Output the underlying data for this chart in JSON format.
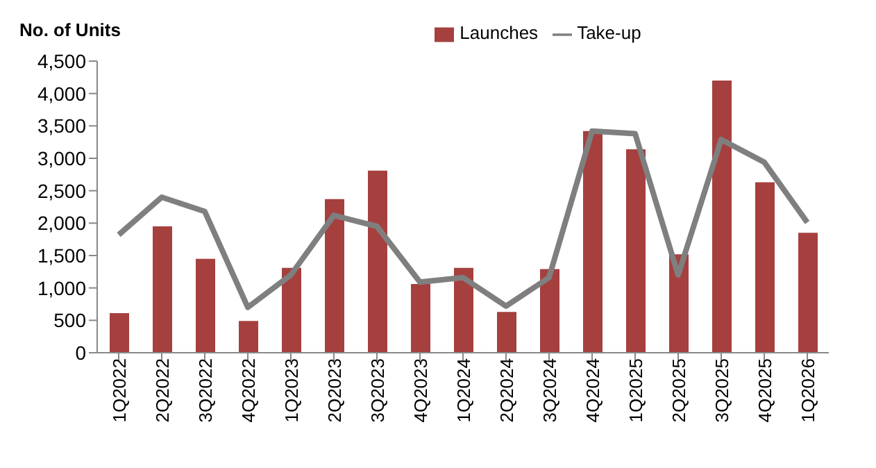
{
  "chart_data": {
    "type": "bar",
    "ylabel": "No. of Units",
    "categories": [
      "1Q2022",
      "2Q2022",
      "3Q2022",
      "4Q2022",
      "1Q2023",
      "2Q2023",
      "3Q2023",
      "4Q2023",
      "1Q2024",
      "2Q2024",
      "3Q2024",
      "4Q2024",
      "1Q2025",
      "2Q2025",
      "3Q2025",
      "4Q2025",
      "1Q2026"
    ],
    "series": [
      {
        "name": "Launches",
        "color": "#a5403f",
        "values": [
          610,
          1950,
          1450,
          490,
          1310,
          2370,
          2810,
          1060,
          1310,
          630,
          1290,
          3420,
          3140,
          1520,
          4200,
          2630,
          1850
        ]
      },
      {
        "name": "Take-up",
        "type": "line",
        "color": "#7f7f7f",
        "values": [
          1820,
          2400,
          2180,
          700,
          1200,
          2120,
          1950,
          1090,
          1160,
          720,
          1160,
          3420,
          3380,
          1200,
          3290,
          2940,
          2010
        ]
      }
    ],
    "ylim": [
      0,
      4500
    ],
    "yticks": [
      0,
      500,
      {
        "value": 1000,
        "label": "1,000"
      },
      {
        "value": 1500,
        "label": "1,500"
      },
      {
        "value": 2000,
        "label": "2,000"
      },
      {
        "value": 2500,
        "label": "2,500"
      },
      {
        "value": 3000,
        "label": "3,000"
      },
      {
        "value": 3500,
        "label": "3,500"
      },
      {
        "value": 4000,
        "label": "4,000"
      },
      {
        "value": 4500,
        "label": "4,500"
      }
    ],
    "legend": "top",
    "marker": "none",
    "line_style": "solid"
  }
}
